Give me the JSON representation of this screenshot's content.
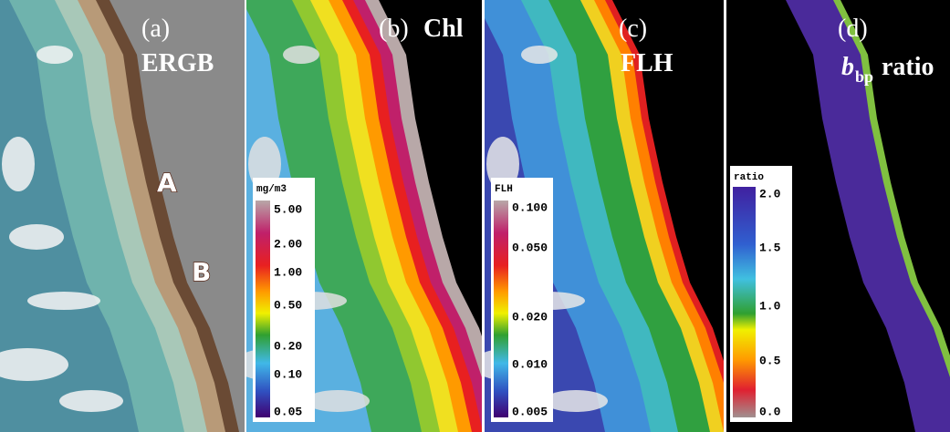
{
  "panels": [
    {
      "label": "(a)",
      "title": "ERGB",
      "annotations": [
        "A",
        "B"
      ]
    },
    {
      "label": "(b)",
      "title": "Chl",
      "colorbar": {
        "unit": "mg/m3",
        "ticks": [
          "5.00",
          "2.00",
          "1.00",
          "0.50",
          "0.20",
          "0.10",
          "0.05"
        ]
      }
    },
    {
      "label": "(c)",
      "title": "FLH",
      "colorbar": {
        "unit": "FLH",
        "ticks": [
          "0.100",
          "0.050",
          "0.020",
          "0.010",
          "0.005"
        ]
      }
    },
    {
      "label": "(d)",
      "title_symbol": "b",
      "title_subscript": "bp",
      "title": "ratio",
      "colorbar": {
        "unit": "ratio",
        "ticks": [
          "2.0",
          "1.5",
          "1.0",
          "0.5",
          "0.0"
        ]
      }
    }
  ]
}
